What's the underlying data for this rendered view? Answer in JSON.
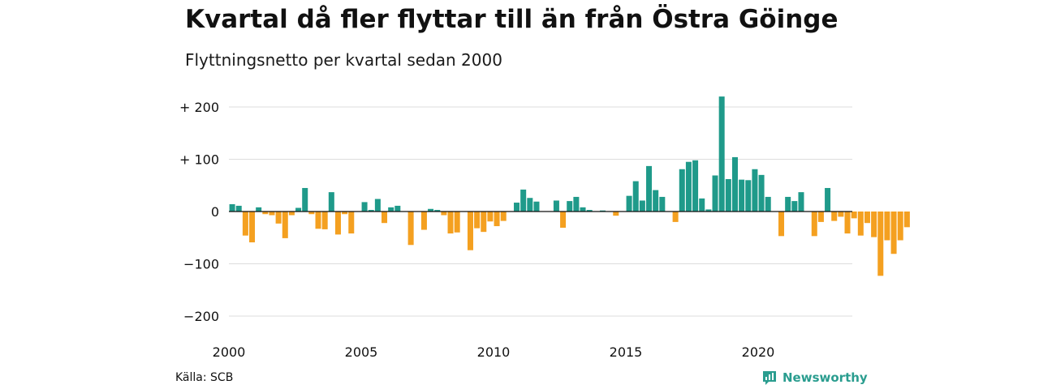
{
  "title": "Kvartal då fler flyttar till än från Östra Göinge",
  "subtitle": "Flyttningsnetto per kvartal sedan 2000",
  "source": "Källa: SCB",
  "brand": {
    "name": "Newsworthy",
    "icon": "newsworthy-logo-icon"
  },
  "colors": {
    "positive": "#1f9a8a",
    "negative": "#f4a020",
    "grid": "#dddddd",
    "baseline": "#111111"
  },
  "chart_data": {
    "type": "bar",
    "title": "",
    "xlabel": "",
    "ylabel": "",
    "ylim": [
      -200,
      200
    ],
    "yticks": [
      200,
      100,
      0,
      -100,
      -200
    ],
    "ytick_labels": [
      "+ 200",
      "+ 100",
      "0",
      "−100",
      "−200"
    ],
    "xticks": [
      2000,
      2005,
      2010,
      2015,
      2020
    ],
    "xtick_labels": [
      "2000",
      "2005",
      "2010",
      "2015",
      "2020"
    ],
    "grid": true,
    "start": {
      "year": 2000,
      "quarter": 1
    },
    "values": [
      14,
      11,
      -46,
      -59,
      8,
      -5,
      -7,
      -23,
      -51,
      -7,
      7,
      45,
      -5,
      -33,
      -34,
      37,
      -44,
      -5,
      -42,
      0,
      18,
      3,
      24,
      -22,
      8,
      11,
      0,
      -64,
      0,
      -35,
      5,
      3,
      -7,
      -42,
      -40,
      0,
      -74,
      -32,
      -39,
      -19,
      -28,
      -18,
      0,
      17,
      42,
      26,
      19,
      0,
      0,
      21,
      -31,
      20,
      28,
      8,
      3,
      0,
      2,
      0,
      -8,
      0,
      30,
      58,
      21,
      87,
      41,
      28,
      0,
      -20,
      81,
      95,
      98,
      25,
      4,
      69,
      220,
      62,
      104,
      61,
      60,
      81,
      70,
      28,
      0,
      -47,
      28,
      20,
      37,
      0,
      -47,
      -20,
      45,
      -18,
      -10,
      -42,
      -13,
      -46,
      -22,
      -49,
      -123,
      -55,
      -81,
      -55,
      -30
    ]
  }
}
